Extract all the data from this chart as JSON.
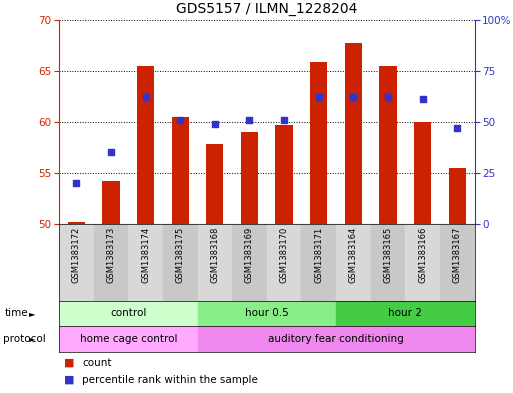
{
  "title": "GDS5157 / ILMN_1228204",
  "samples": [
    "GSM1383172",
    "GSM1383173",
    "GSM1383174",
    "GSM1383175",
    "GSM1383168",
    "GSM1383169",
    "GSM1383170",
    "GSM1383171",
    "GSM1383164",
    "GSM1383165",
    "GSM1383166",
    "GSM1383167"
  ],
  "counts": [
    50.2,
    54.2,
    65.5,
    60.5,
    57.8,
    59.0,
    59.7,
    65.9,
    67.7,
    65.5,
    60.0,
    55.5
  ],
  "percentile_ranks": [
    20,
    35,
    62,
    51,
    49,
    51,
    51,
    62,
    62,
    62,
    61,
    47
  ],
  "ylim_left": [
    50,
    70
  ],
  "ylim_right": [
    0,
    100
  ],
  "yticks_left": [
    50,
    55,
    60,
    65,
    70
  ],
  "yticks_right": [
    0,
    25,
    50,
    75,
    100
  ],
  "ytick_labels_right": [
    "0",
    "25",
    "50",
    "75",
    "100%"
  ],
  "bar_color": "#cc2200",
  "dot_color": "#3333cc",
  "time_groups": [
    {
      "label": "control",
      "start": 0,
      "end": 3,
      "color": "#ccffcc"
    },
    {
      "label": "hour 0.5",
      "start": 4,
      "end": 7,
      "color": "#88ee88"
    },
    {
      "label": "hour 2",
      "start": 8,
      "end": 11,
      "color": "#44cc44"
    }
  ],
  "protocol_groups": [
    {
      "label": "home cage control",
      "start": 0,
      "end": 3,
      "color": "#ffaaff"
    },
    {
      "label": "auditory fear conditioning",
      "start": 4,
      "end": 11,
      "color": "#ee88ee"
    }
  ],
  "time_row_label": "time",
  "protocol_row_label": "protocol",
  "legend_count_label": "count",
  "legend_percentile_label": "percentile rank within the sample",
  "title_fontsize": 10,
  "tick_fontsize": 7.5,
  "sample_fontsize": 6.0,
  "row_fontsize": 7.5,
  "legend_fontsize": 7.5
}
